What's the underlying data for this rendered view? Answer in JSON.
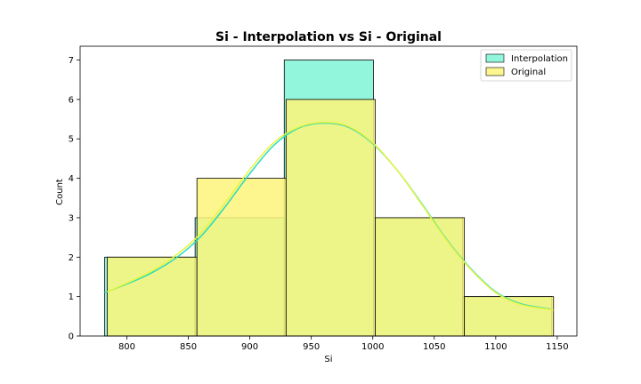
{
  "chart_data": {
    "type": "bar",
    "title": "Si - Interpolation vs Si - Original",
    "xlabel": "Si",
    "ylabel": "Count",
    "xlim": [
      762,
      1166
    ],
    "ylim": [
      0,
      7.35
    ],
    "xticks": [
      800,
      850,
      900,
      950,
      1000,
      1050,
      1100,
      1150
    ],
    "yticks": [
      0,
      1,
      2,
      3,
      4,
      5,
      6,
      7
    ],
    "grid": false,
    "legend_position": "top-right",
    "series": [
      {
        "name": "Interpolation",
        "color": "#7ff5d6",
        "curve_color": "#25d9c0",
        "bins": [
          {
            "x0": 782,
            "x1": 855.5,
            "count": 2
          },
          {
            "x0": 855.5,
            "x1": 928,
            "count": 3
          },
          {
            "x0": 928,
            "x1": 1000.5,
            "count": 7
          },
          {
            "x0": 1000.5,
            "x1": 1073,
            "count": 3
          },
          {
            "x0": 1073,
            "x1": 1145.5,
            "count": 1
          }
        ],
        "kde": {
          "x": [
            782,
            800,
            820,
            840,
            860,
            880,
            900,
            920,
            940,
            960,
            980,
            1000,
            1020,
            1040,
            1060,
            1080,
            1100,
            1120,
            1145
          ],
          "y": [
            1.1,
            1.32,
            1.6,
            1.98,
            2.52,
            3.28,
            4.12,
            4.85,
            5.28,
            5.4,
            5.3,
            4.88,
            4.2,
            3.35,
            2.45,
            1.7,
            1.12,
            0.82,
            0.68
          ]
        }
      },
      {
        "name": "Original",
        "color": "#fdf57a",
        "curve_color": "#e8f53a",
        "bins": [
          {
            "x0": 784,
            "x1": 857,
            "count": 2
          },
          {
            "x0": 857,
            "x1": 929.5,
            "count": 4
          },
          {
            "x0": 929.5,
            "x1": 1002,
            "count": 6
          },
          {
            "x0": 1002,
            "x1": 1074.5,
            "count": 3
          },
          {
            "x0": 1074.5,
            "x1": 1147,
            "count": 1
          }
        ],
        "kde": {
          "x": [
            784,
            800,
            820,
            840,
            860,
            880,
            900,
            920,
            940,
            960,
            980,
            1000,
            1020,
            1040,
            1060,
            1080,
            1100,
            1120,
            1147
          ],
          "y": [
            1.12,
            1.34,
            1.64,
            2.05,
            2.6,
            3.38,
            4.22,
            4.92,
            5.3,
            5.42,
            5.32,
            4.9,
            4.2,
            3.33,
            2.43,
            1.68,
            1.1,
            0.8,
            0.66
          ]
        }
      }
    ]
  }
}
